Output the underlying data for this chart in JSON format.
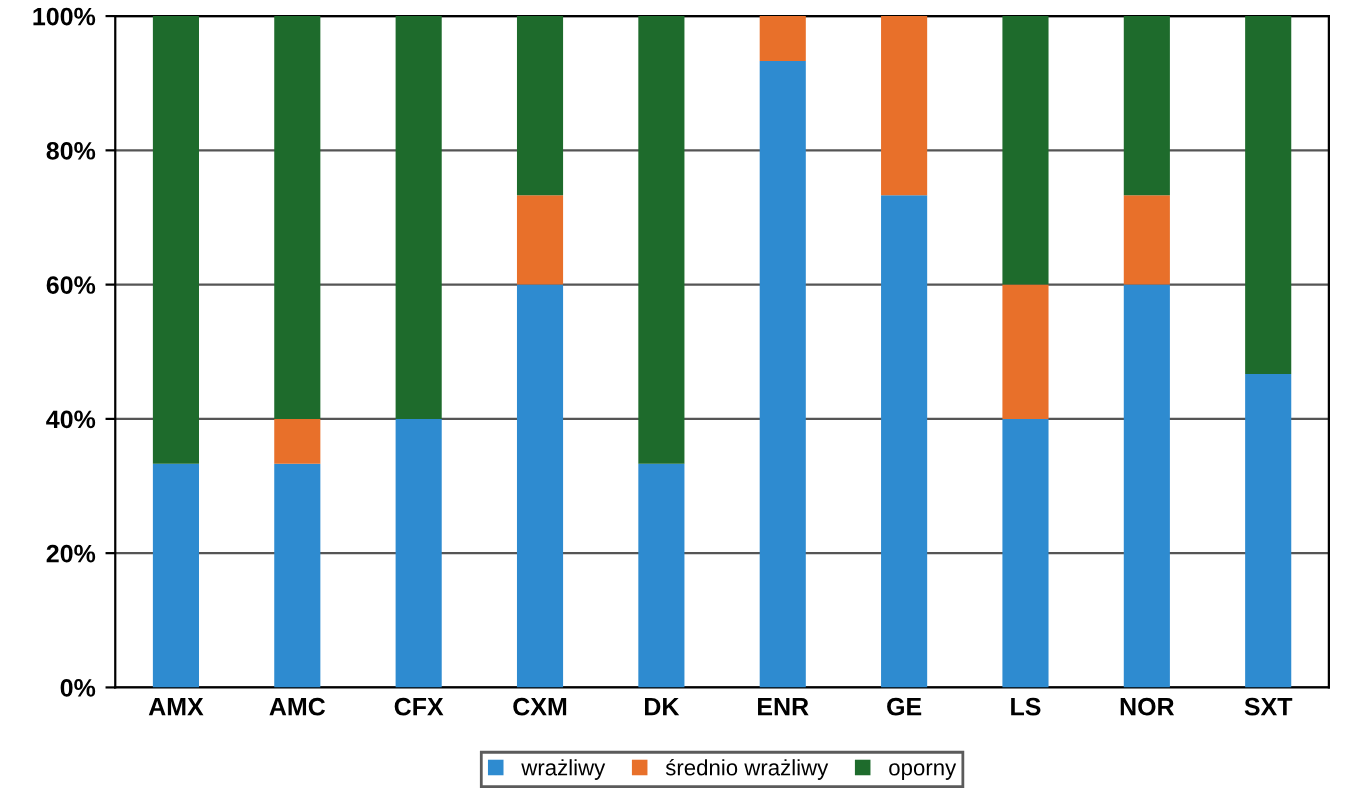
{
  "chart_data": {
    "type": "bar",
    "stacked": true,
    "categories": [
      "AMX",
      "AMC",
      "CFX",
      "CXM",
      "DK",
      "ENR",
      "GE",
      "LS",
      "NOR",
      "SXT"
    ],
    "series": [
      {
        "name": "wrażliwy",
        "color": "#2e8bd0",
        "values": [
          33.3,
          33.3,
          40,
          60,
          33.3,
          93.3,
          73.3,
          40,
          60,
          46.7
        ]
      },
      {
        "name": "średnio wrażliwy",
        "color": "#e8702a",
        "values": [
          0,
          6.7,
          0,
          13.3,
          0,
          6.7,
          26.7,
          20,
          13.3,
          0
        ]
      },
      {
        "name": "oporny",
        "color": "#1e6b2c",
        "values": [
          66.7,
          60,
          60,
          26.7,
          66.7,
          0,
          0,
          40,
          26.7,
          53.3
        ]
      }
    ],
    "ylim": [
      0,
      100
    ],
    "yticks": [
      {
        "value": 0,
        "label": "0%"
      },
      {
        "value": 20,
        "label": "20%"
      },
      {
        "value": 40,
        "label": "40%"
      },
      {
        "value": 60,
        "label": "60%"
      },
      {
        "value": 80,
        "label": "80%"
      },
      {
        "value": 100,
        "label": "100%"
      }
    ],
    "grid": "y",
    "legend": "bottom"
  }
}
